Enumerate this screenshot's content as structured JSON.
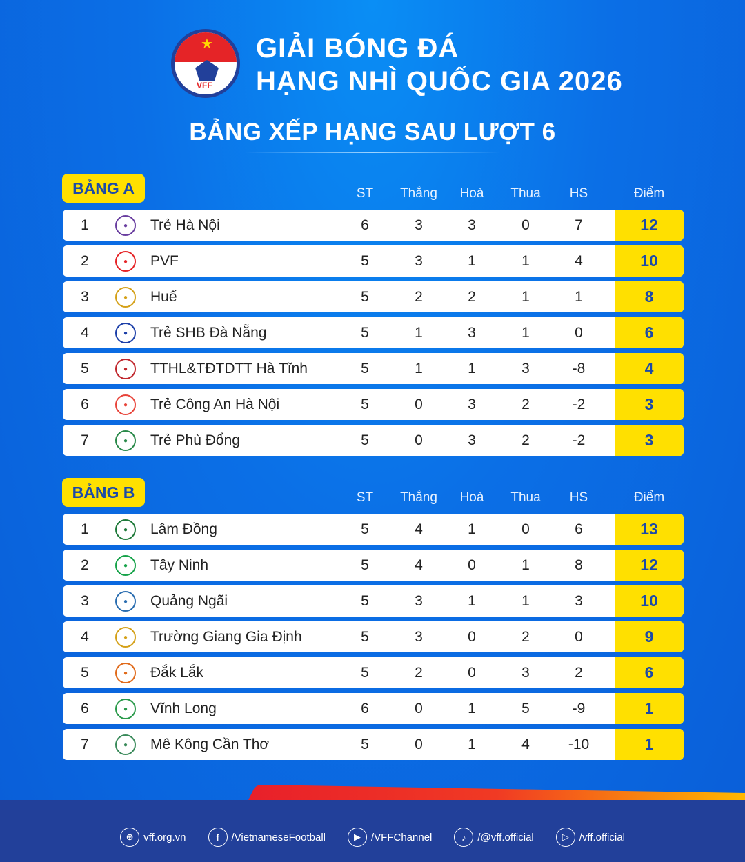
{
  "header": {
    "logo_text": "VFF",
    "title_line1": "GIẢI BÓNG ĐÁ",
    "title_line2": "HẠNG NHÌ QUỐC GIA 2026",
    "subtitle": "BẢNG XẾP HẠNG SAU LƯỢT 6"
  },
  "columns": [
    "ST",
    "Thắng",
    "Hoà",
    "Thua",
    "HS",
    "Điểm"
  ],
  "colors": {
    "accent": "#ffe000",
    "text_blue": "#1c4aa8",
    "footer": "#22409a"
  },
  "groups": [
    {
      "label": "BẢNG A",
      "rows": [
        {
          "rank": "1",
          "team": "Trẻ Hà Nội",
          "logo": "#6a3fa0",
          "st": "6",
          "w": "3",
          "d": "3",
          "l": "0",
          "hs": "7",
          "pts": "12"
        },
        {
          "rank": "2",
          "team": "PVF",
          "logo": "#e52427",
          "st": "5",
          "w": "3",
          "d": "1",
          "l": "1",
          "hs": "4",
          "pts": "10"
        },
        {
          "rank": "3",
          "team": "Huế",
          "logo": "#d4a017",
          "st": "5",
          "w": "2",
          "d": "2",
          "l": "1",
          "hs": "1",
          "pts": "8"
        },
        {
          "rank": "4",
          "team": "Trẻ SHB Đà Nẵng",
          "logo": "#1c3fa8",
          "st": "5",
          "w": "1",
          "d": "3",
          "l": "1",
          "hs": "0",
          "pts": "6"
        },
        {
          "rank": "5",
          "team": "TTHL&TĐTDTT Hà Tĩnh",
          "logo": "#c0272d",
          "st": "5",
          "w": "1",
          "d": "1",
          "l": "3",
          "hs": "-8",
          "pts": "4"
        },
        {
          "rank": "6",
          "team": "Trẻ Công An Hà Nội",
          "logo": "#e8443a",
          "st": "5",
          "w": "0",
          "d": "3",
          "l": "2",
          "hs": "-2",
          "pts": "3"
        },
        {
          "rank": "7",
          "team": "Trẻ Phù Đổng",
          "logo": "#2a8a4a",
          "st": "5",
          "w": "0",
          "d": "3",
          "l": "2",
          "hs": "-2",
          "pts": "3"
        }
      ]
    },
    {
      "label": "BẢNG B",
      "rows": [
        {
          "rank": "1",
          "team": "Lâm Đồng",
          "logo": "#1f7a3a",
          "st": "5",
          "w": "4",
          "d": "1",
          "l": "0",
          "hs": "6",
          "pts": "13"
        },
        {
          "rank": "2",
          "team": "Tây Ninh",
          "logo": "#17a34a",
          "st": "5",
          "w": "4",
          "d": "0",
          "l": "1",
          "hs": "8",
          "pts": "12"
        },
        {
          "rank": "3",
          "team": "Quảng Ngãi",
          "logo": "#2a6db0",
          "st": "5",
          "w": "3",
          "d": "1",
          "l": "1",
          "hs": "3",
          "pts": "10"
        },
        {
          "rank": "4",
          "team": "Trường Giang Gia Định",
          "logo": "#d4a017",
          "st": "5",
          "w": "3",
          "d": "0",
          "l": "2",
          "hs": "0",
          "pts": "9"
        },
        {
          "rank": "5",
          "team": "Đắk Lắk",
          "logo": "#e06a1a",
          "st": "5",
          "w": "2",
          "d": "0",
          "l": "3",
          "hs": "2",
          "pts": "6"
        },
        {
          "rank": "6",
          "team": "Vĩnh Long",
          "logo": "#2a9a4a",
          "st": "6",
          "w": "0",
          "d": "1",
          "l": "5",
          "hs": "-9",
          "pts": "1"
        },
        {
          "rank": "7",
          "team": "Mê Kông Cần Thơ",
          "logo": "#3a8a5a",
          "st": "5",
          "w": "0",
          "d": "1",
          "l": "4",
          "hs": "-10",
          "pts": "1"
        }
      ]
    }
  ],
  "footer": [
    {
      "icon": "globe-icon",
      "glyph": "⊕",
      "text": "vff.org.vn"
    },
    {
      "icon": "facebook-icon",
      "glyph": "f",
      "text": "/VietnameseFootball"
    },
    {
      "icon": "youtube-icon",
      "glyph": "▶",
      "text": "/VFFChannel"
    },
    {
      "icon": "tiktok-icon",
      "glyph": "♪",
      "text": "/@vff.official"
    },
    {
      "icon": "play-icon",
      "glyph": "▷",
      "text": "/vff.official"
    }
  ]
}
